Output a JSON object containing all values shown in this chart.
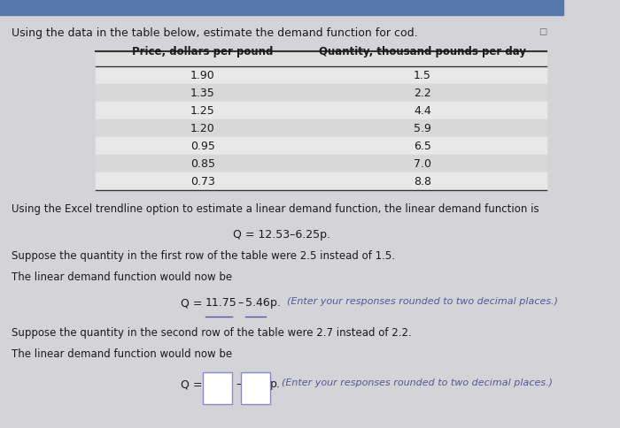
{
  "title": "Using the data in the table below, estimate the demand function for cod.",
  "col1_header": "Price, dollars per pound",
  "col2_header": "Quantity, thousand pounds per day",
  "prices": [
    "1.90",
    "1.35",
    "1.25",
    "1.20",
    "0.95",
    "0.85",
    "0.73"
  ],
  "quantities": [
    "1.5",
    "2.2",
    "4.4",
    "5.9",
    "6.5",
    "7.0",
    "8.8"
  ],
  "text1": "Using the Excel trendline option to estimate a linear demand function, the linear demand function is",
  "eq1": "Q = 12.53–6.25p.",
  "text2": "Suppose the quantity in the first row of the table were 2.5 instead of 1.5.",
  "text3": "The linear demand function would now be",
  "eq2_val1": "11.75",
  "eq2_val2": "5.46",
  "eq2_note": "(Enter your responses rounded to two decimal places.)",
  "text4": "Suppose the quantity in the second row of the table were 2.7 instead of 2.2.",
  "text5": "The linear demand function would now be",
  "eq3_note": "(Enter your responses rounded to two decimal places.)",
  "bg_color": "#d4d4d8",
  "header_line_color": "#333333",
  "text_color": "#1a1a1a",
  "underline_color": "#5555aa",
  "box_color": "#8888cc",
  "italic_color": "#555599",
  "top_bar_color": "#5577aa"
}
